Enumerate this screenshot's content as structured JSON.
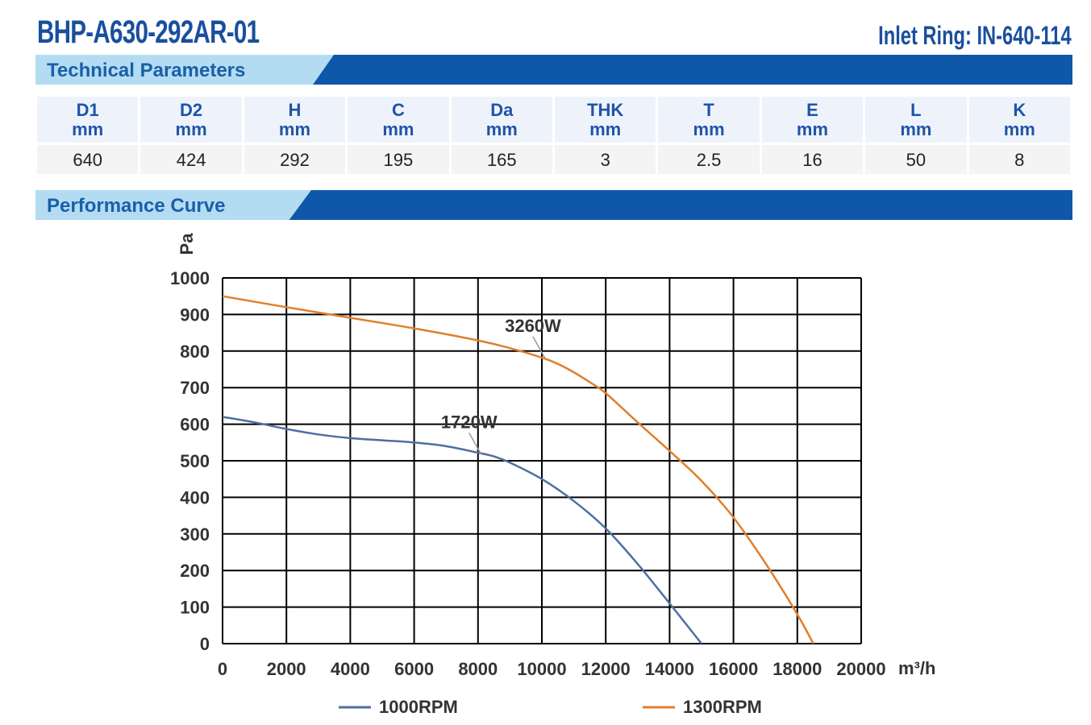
{
  "header": {
    "model": "BHP-A630-292AR-01",
    "inlet_ring": "Inlet Ring: IN-640-114"
  },
  "sections": {
    "technical": "Technical Parameters",
    "performance": "Performance Curve"
  },
  "params": [
    {
      "name": "D1",
      "unit": "mm",
      "value": "640"
    },
    {
      "name": "D2",
      "unit": "mm",
      "value": "424"
    },
    {
      "name": "H",
      "unit": "mm",
      "value": "292"
    },
    {
      "name": "C",
      "unit": "mm",
      "value": "195"
    },
    {
      "name": "Da",
      "unit": "mm",
      "value": "165"
    },
    {
      "name": "THK",
      "unit": "mm",
      "value": "3"
    },
    {
      "name": "T",
      "unit": "mm",
      "value": "2.5"
    },
    {
      "name": "E",
      "unit": "mm",
      "value": "16"
    },
    {
      "name": "L",
      "unit": "mm",
      "value": "50"
    },
    {
      "name": "K",
      "unit": "mm",
      "value": "8"
    }
  ],
  "chart_data": {
    "type": "line",
    "title": "",
    "xlabel": "m³/h",
    "ylabel": "Pa",
    "xlim": [
      0,
      20000
    ],
    "ylim": [
      0,
      1000
    ],
    "xticks": [
      0,
      2000,
      4000,
      6000,
      8000,
      10000,
      12000,
      14000,
      16000,
      18000,
      20000
    ],
    "yticks": [
      0,
      100,
      200,
      300,
      400,
      500,
      600,
      700,
      800,
      900,
      1000
    ],
    "grid": true,
    "legend": "bottom",
    "series": [
      {
        "name": "1000RPM",
        "color": "#4f6fa3",
        "x": [
          0,
          1000,
          2000,
          3000,
          4000,
          5000,
          6000,
          7000,
          8000,
          8500,
          9000,
          10000,
          11000,
          12000,
          13000,
          14000,
          14500,
          15000
        ],
        "y": [
          620,
          605,
          587,
          572,
          562,
          556,
          550,
          540,
          522,
          512,
          495,
          450,
          390,
          315,
          218,
          110,
          55,
          0
        ],
        "annotation": {
          "text": "1720W",
          "x": 8100,
          "y": 517
        }
      },
      {
        "name": "1300RPM",
        "color": "#e07f2c",
        "x": [
          0,
          2000,
          4000,
          6000,
          8000,
          9000,
          10000,
          10500,
          11000,
          11500,
          12000,
          13000,
          14000,
          15000,
          16000,
          17000,
          18000,
          18500
        ],
        "y": [
          950,
          920,
          891,
          862,
          829,
          808,
          782,
          765,
          742,
          715,
          685,
          605,
          527,
          445,
          345,
          220,
          80,
          0
        ],
        "annotation": {
          "text": "3260W",
          "x": 10100,
          "y": 780
        }
      }
    ]
  }
}
